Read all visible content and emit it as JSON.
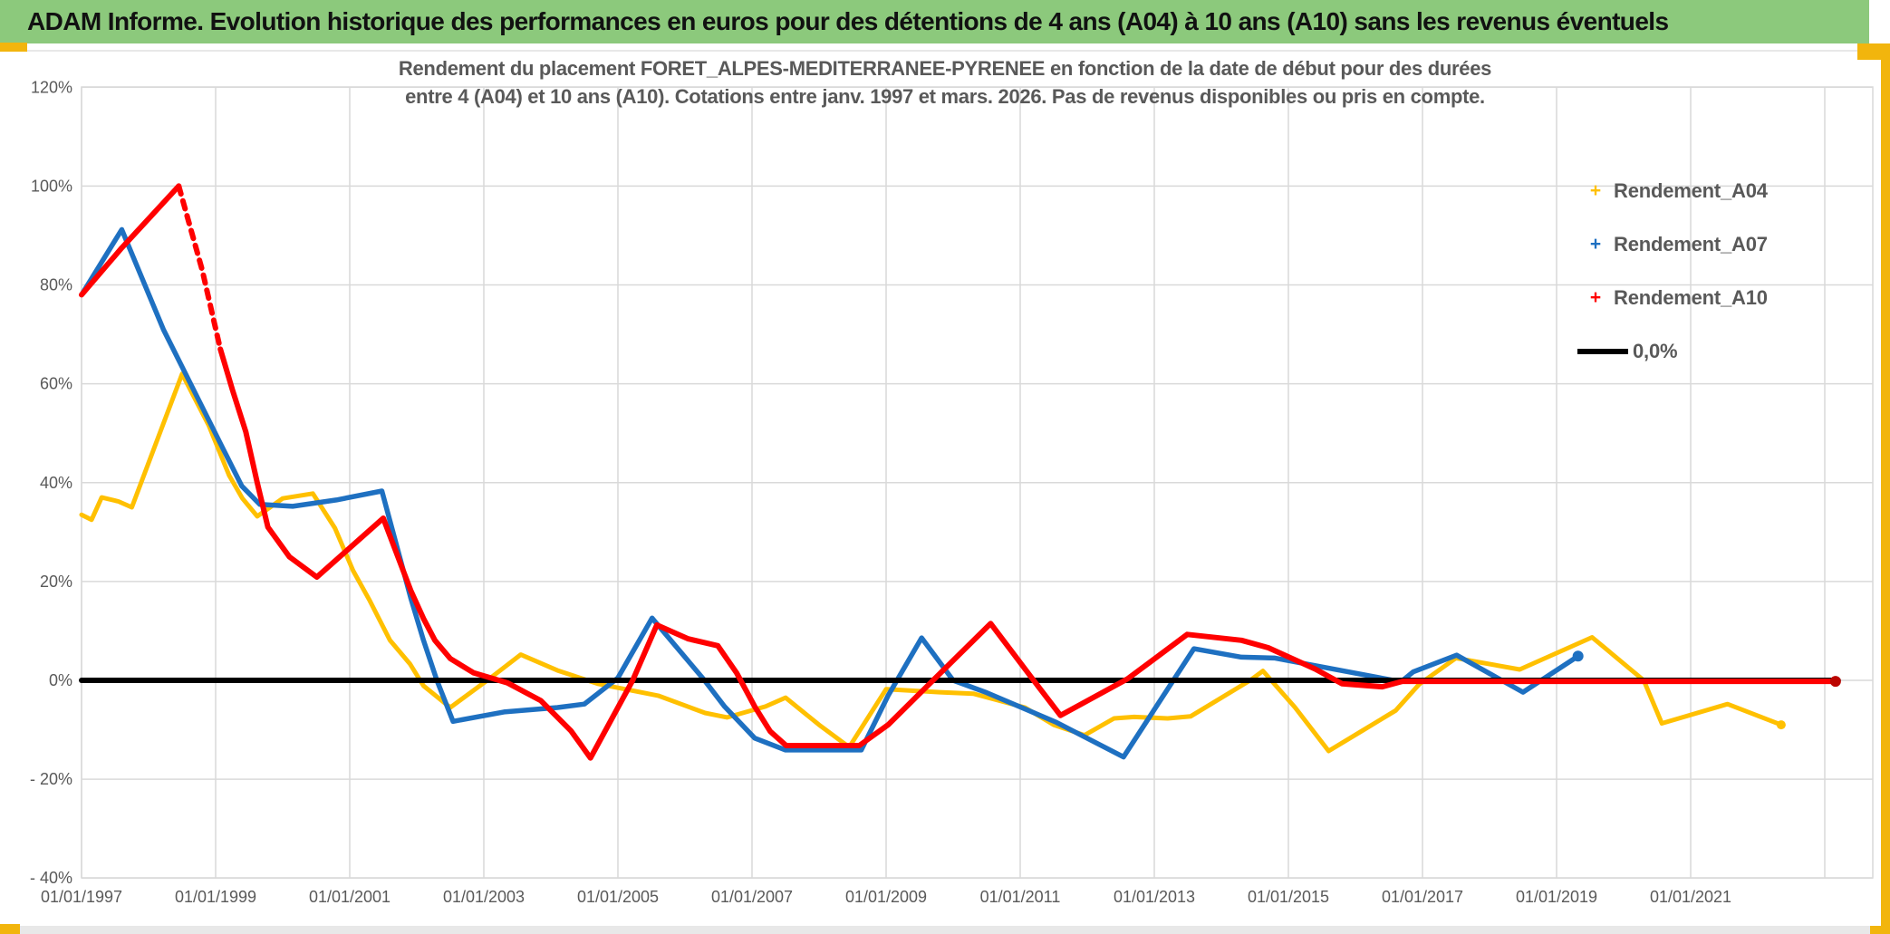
{
  "window": {
    "title": "ADAM Informe. Evolution historique des performances en euros pour des détentions de 4 ans (A04) à 10 ans (A10) sans les revenus éventuels"
  },
  "colors": {
    "titlebar_green": "#8CC97C",
    "frame_gold": "#F2B50D",
    "gridline": "#D9D9D9",
    "axis_text": "#595959",
    "series_a04": "#FFC000",
    "series_a07": "#1E70C1",
    "series_a10": "#FF0000",
    "zero_line": "#000000"
  },
  "chart_data": {
    "type": "line",
    "title_lines": [
      "Rendement du placement FORET_ALPES-MEDITERRANEE-PYRENEE en fonction de la date de début pour des durées",
      "entre 4 (A04) et 10 ans (A10). Cotations entre janv. 1997 et mars. 2026. Pas de revenus disponibles ou pris en compte."
    ],
    "x_axis": {
      "min_date": 1997.0,
      "max_date": 2023.72,
      "tick_dates": [
        1997,
        1999,
        2001,
        2003,
        2005,
        2007,
        2009,
        2011,
        2013,
        2015,
        2017,
        2019,
        2021
      ],
      "tick_labels": [
        "01/01/1997",
        "01/01/1999",
        "01/01/2001",
        "01/01/2003",
        "01/01/2005",
        "01/01/2007",
        "01/01/2009",
        "01/01/2011",
        "01/01/2013",
        "01/01/2015",
        "01/01/2017",
        "01/01/2019",
        "01/01/2021"
      ],
      "extra_gridline_dates": [
        2023
      ]
    },
    "y_axis": {
      "min": -40,
      "max": 120,
      "tick_values": [
        120,
        100,
        80,
        60,
        40,
        20,
        0,
        -20,
        -40
      ],
      "tick_labels": [
        "120%",
        "100%",
        "80%",
        "60%",
        "40%",
        "20%",
        "0%",
        "- 20%",
        "- 40%"
      ]
    },
    "grid": true,
    "legend_position": "right-inside",
    "series": [
      {
        "name": "Rendement_A04",
        "color": "#FFC000",
        "width": 5,
        "z": 1,
        "endcap": {
          "r": 5,
          "color": "#FFC000"
        },
        "points": [
          [
            1997.0,
            33.5
          ],
          [
            1997.15,
            32.5
          ],
          [
            1997.3,
            37.0
          ],
          [
            1997.55,
            36.2
          ],
          [
            1997.75,
            35.0
          ],
          [
            1998.5,
            62.0
          ],
          [
            1998.9,
            51.5
          ],
          [
            1999.2,
            41.5
          ],
          [
            1999.4,
            36.8
          ],
          [
            1999.62,
            33.2
          ],
          [
            2000.0,
            36.8
          ],
          [
            2000.45,
            37.8
          ],
          [
            2000.78,
            30.8
          ],
          [
            2001.05,
            22.2
          ],
          [
            2001.3,
            16.1
          ],
          [
            2001.6,
            8.1
          ],
          [
            2001.9,
            3.3
          ],
          [
            2002.1,
            -1.1
          ],
          [
            2002.5,
            -5.5
          ],
          [
            2003.1,
            0.5
          ],
          [
            2003.55,
            5.2
          ],
          [
            2004.1,
            2.0
          ],
          [
            2004.7,
            -0.7
          ],
          [
            2005.6,
            -3.1
          ],
          [
            2006.3,
            -6.6
          ],
          [
            2006.63,
            -7.5
          ],
          [
            2007.2,
            -5.3
          ],
          [
            2007.5,
            -3.5
          ],
          [
            2008.0,
            -9.0
          ],
          [
            2008.45,
            -13.5
          ],
          [
            2009.0,
            -1.8
          ],
          [
            2009.8,
            -2.4
          ],
          [
            2010.3,
            -2.7
          ],
          [
            2011.07,
            -5.5
          ],
          [
            2011.5,
            -9.0
          ],
          [
            2011.96,
            -11.1
          ],
          [
            2012.4,
            -7.7
          ],
          [
            2012.7,
            -7.4
          ],
          [
            2013.2,
            -7.7
          ],
          [
            2013.54,
            -7.3
          ],
          [
            2014.43,
            0.0
          ],
          [
            2014.62,
            1.9
          ],
          [
            2015.1,
            -5.5
          ],
          [
            2015.6,
            -14.3
          ],
          [
            2016.1,
            -10.2
          ],
          [
            2016.6,
            -6.1
          ],
          [
            2016.95,
            -0.8
          ],
          [
            2017.5,
            4.5
          ],
          [
            2018.45,
            2.2
          ],
          [
            2019.53,
            8.7
          ],
          [
            2020.3,
            0.0
          ],
          [
            2020.57,
            -8.7
          ],
          [
            2021.55,
            -4.8
          ],
          [
            2022.35,
            -9.0
          ]
        ]
      },
      {
        "name": "Rendement_A07",
        "color": "#1E70C1",
        "width": 5.5,
        "z": 2,
        "endcap": {
          "r": 6,
          "color": "#1E70C1"
        },
        "points": [
          [
            1997.0,
            78.0
          ],
          [
            1997.6,
            91.2
          ],
          [
            1998.22,
            71.0
          ],
          [
            1998.67,
            58.8
          ],
          [
            1999.12,
            46.6
          ],
          [
            1999.39,
            39.3
          ],
          [
            1999.66,
            35.6
          ],
          [
            2000.15,
            35.2
          ],
          [
            2000.8,
            36.5
          ],
          [
            2001.48,
            38.3
          ],
          [
            2001.69,
            27.7
          ],
          [
            2001.91,
            16.7
          ],
          [
            2002.1,
            8.1
          ],
          [
            2002.3,
            0.0
          ],
          [
            2002.54,
            -8.3
          ],
          [
            2003.3,
            -6.4
          ],
          [
            2004.1,
            -5.5
          ],
          [
            2004.5,
            -4.8
          ],
          [
            2005.0,
            0.5
          ],
          [
            2005.51,
            12.6
          ],
          [
            2006.28,
            0.2
          ],
          [
            2006.59,
            -5.3
          ],
          [
            2007.04,
            -11.7
          ],
          [
            2007.5,
            -14.1
          ],
          [
            2008.63,
            -14.1
          ],
          [
            2009.03,
            -3.1
          ],
          [
            2009.53,
            8.6
          ],
          [
            2010.0,
            0.0
          ],
          [
            2010.5,
            -2.5
          ],
          [
            2011.54,
            -8.5
          ],
          [
            2012.54,
            -15.5
          ],
          [
            2013.59,
            6.4
          ],
          [
            2014.3,
            4.7
          ],
          [
            2014.8,
            4.5
          ],
          [
            2015.9,
            1.7
          ],
          [
            2016.68,
            -0.3
          ],
          [
            2016.86,
            1.7
          ],
          [
            2017.51,
            5.1
          ],
          [
            2018.5,
            -2.4
          ],
          [
            2019.32,
            4.9
          ]
        ]
      },
      {
        "name": "0,0%",
        "color": "#000000",
        "width": 6,
        "z": 3,
        "points": [
          [
            1997.0,
            0.0
          ],
          [
            2023.2,
            0.0
          ]
        ]
      },
      {
        "name": "Rendement_A10",
        "color": "#FF0000",
        "width": 6,
        "z": 4,
        "endcap": {
          "r": 6,
          "color": "#BB0500"
        },
        "segments": [
          {
            "points": [
              [
                1997.0,
                78.0
              ],
              [
                1997.6,
                87.5
              ],
              [
                1998.45,
                100.0
              ]
            ]
          },
          {
            "dash": "9 8",
            "points": [
              [
                1998.45,
                100.0
              ],
              [
                1998.8,
                83.0
              ],
              [
                1999.07,
                67.0
              ]
            ]
          },
          {
            "points": [
              [
                1999.07,
                67.0
              ],
              [
                1999.25,
                58.8
              ],
              [
                1999.45,
                50.3
              ],
              [
                1999.62,
                40.0
              ],
              [
                1999.78,
                31.0
              ],
              [
                2000.1,
                25.0
              ],
              [
                2000.51,
                20.9
              ],
              [
                2001.5,
                32.8
              ],
              [
                2001.73,
                24.6
              ],
              [
                2001.91,
                18.2
              ],
              [
                2002.1,
                12.5
              ],
              [
                2002.27,
                8.1
              ],
              [
                2002.5,
                4.4
              ],
              [
                2002.85,
                1.5
              ],
              [
                2003.35,
                -0.5
              ],
              [
                2003.85,
                -4.1
              ],
              [
                2004.3,
                -10.2
              ],
              [
                2004.59,
                -15.7
              ],
              [
                2005.22,
                0.0
              ],
              [
                2005.58,
                11.2
              ],
              [
                2006.05,
                8.4
              ],
              [
                2006.49,
                7.0
              ],
              [
                2006.77,
                1.5
              ],
              [
                2007.04,
                -5.3
              ],
              [
                2007.27,
                -10.3
              ],
              [
                2007.51,
                -13.2
              ],
              [
                2008.6,
                -13.2
              ],
              [
                2009.03,
                -9.0
              ],
              [
                2009.7,
                0.0
              ],
              [
                2010.56,
                11.5
              ],
              [
                2011.2,
                0.0
              ],
              [
                2011.6,
                -7.1
              ],
              [
                2012.6,
                0.3
              ],
              [
                2013.49,
                9.3
              ],
              [
                2014.3,
                8.1
              ],
              [
                2014.7,
                6.6
              ],
              [
                2015.4,
                2.3
              ],
              [
                2015.8,
                -0.7
              ],
              [
                2016.4,
                -1.3
              ],
              [
                2016.7,
                -0.2
              ],
              [
                2023.16,
                -0.2
              ]
            ]
          }
        ]
      }
    ],
    "legend": {
      "items": [
        {
          "label": "Rendement_A04",
          "marker": "plus",
          "color": "#FFC000"
        },
        {
          "label": "Rendement_A07",
          "marker": "plus",
          "color": "#1E70C1"
        },
        {
          "label": "Rendement_A10",
          "marker": "plus",
          "color": "#FF0000"
        },
        {
          "label": "0,0%",
          "marker": "line",
          "color": "#000000"
        }
      ]
    }
  }
}
